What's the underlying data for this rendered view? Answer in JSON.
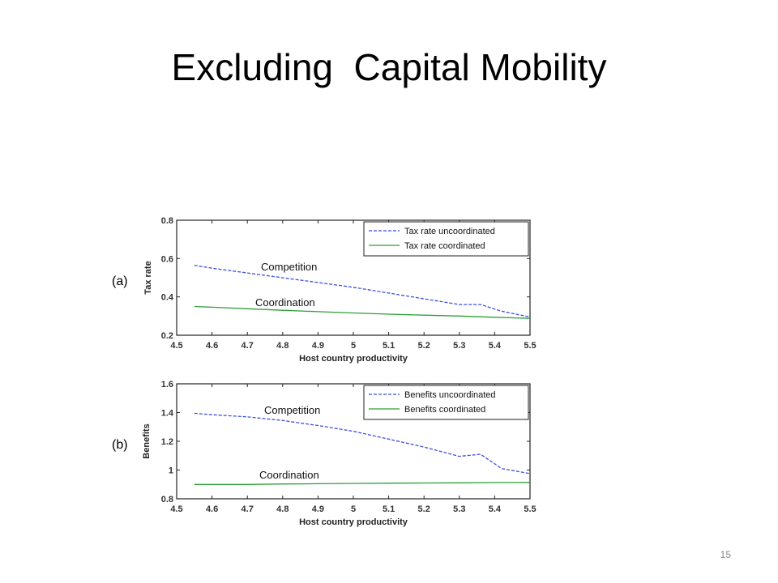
{
  "slide": {
    "title": "Excluding  Capital Mobility",
    "page_number": "15"
  },
  "colors": {
    "uncoordinated": "#3b4fe0",
    "coordinated": "#2e9e3a"
  },
  "chart_data": [
    {
      "type": "line",
      "panel_label": "(a)",
      "xlabel": "Host country productivity",
      "ylabel": "Tax rate",
      "xlim": [
        4.5,
        5.5
      ],
      "ylim": [
        0.2,
        0.8
      ],
      "x_ticks": [
        "4.5",
        "4.6",
        "4.7",
        "4.8",
        "4.9",
        "5",
        "5.1",
        "5.2",
        "5.3",
        "5.4",
        "5.5"
      ],
      "y_ticks": [
        "0.2",
        "0.4",
        "0.6",
        "0.8"
      ],
      "legend_position": "top-right",
      "annotations": [
        "Competition",
        "Coordination"
      ],
      "series": [
        {
          "name": "Tax rate uncoordinated",
          "style": "dashed",
          "x": [
            4.55,
            4.6,
            4.7,
            4.8,
            4.9,
            5.0,
            5.1,
            5.2,
            5.3,
            5.36,
            5.42,
            5.5
          ],
          "y": [
            0.565,
            0.55,
            0.525,
            0.5,
            0.475,
            0.45,
            0.42,
            0.39,
            0.36,
            0.36,
            0.325,
            0.295
          ]
        },
        {
          "name": "Tax rate coordinated",
          "style": "solid",
          "x": [
            4.55,
            4.6,
            4.7,
            4.8,
            4.9,
            5.0,
            5.1,
            5.2,
            5.3,
            5.4,
            5.5
          ],
          "y": [
            0.35,
            0.346,
            0.338,
            0.33,
            0.323,
            0.316,
            0.31,
            0.305,
            0.3,
            0.294,
            0.288
          ]
        }
      ]
    },
    {
      "type": "line",
      "panel_label": "(b)",
      "xlabel": "Host country productivity",
      "ylabel": "Benefits",
      "xlim": [
        4.5,
        5.5
      ],
      "ylim": [
        0.8,
        1.6
      ],
      "x_ticks": [
        "4.5",
        "4.6",
        "4.7",
        "4.8",
        "4.9",
        "5",
        "5.1",
        "5.2",
        "5.3",
        "5.4",
        "5.5"
      ],
      "y_ticks": [
        "0.8",
        "1",
        "1.2",
        "1.4",
        "1.6"
      ],
      "legend_position": "top-right",
      "annotations": [
        "Competition",
        "Coordination"
      ],
      "series": [
        {
          "name": "Benefits uncoordinated",
          "style": "dashed",
          "x": [
            4.55,
            4.6,
            4.7,
            4.8,
            4.9,
            5.0,
            5.1,
            5.2,
            5.3,
            5.36,
            5.42,
            5.5
          ],
          "y": [
            1.395,
            1.385,
            1.37,
            1.345,
            1.31,
            1.27,
            1.215,
            1.16,
            1.095,
            1.11,
            1.01,
            0.975
          ]
        },
        {
          "name": "Benefits coordinated",
          "style": "solid",
          "x": [
            4.55,
            4.6,
            4.7,
            4.8,
            4.9,
            5.0,
            5.1,
            5.2,
            5.3,
            5.4,
            5.5
          ],
          "y": [
            0.9,
            0.9,
            0.9,
            0.903,
            0.905,
            0.907,
            0.909,
            0.91,
            0.911,
            0.913,
            0.914
          ]
        }
      ]
    }
  ]
}
